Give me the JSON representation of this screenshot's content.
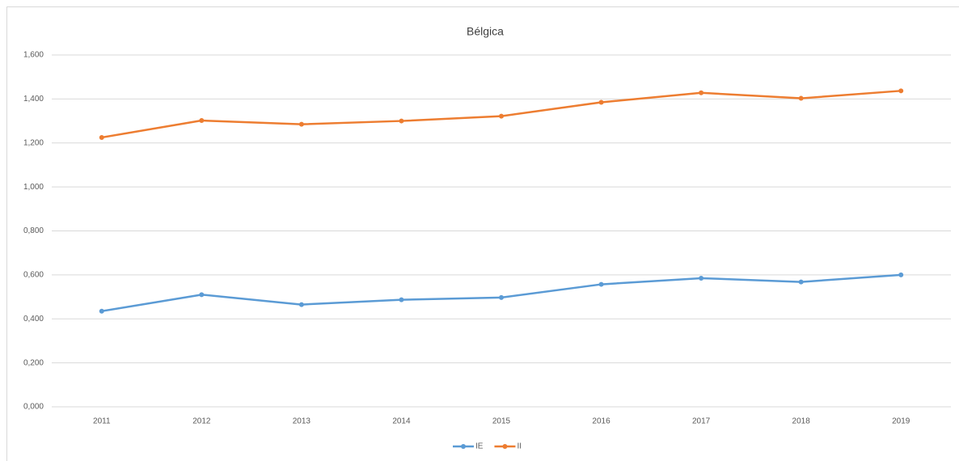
{
  "chart_data": {
    "type": "line",
    "title": "Bélgica",
    "categories": [
      "2011",
      "2012",
      "2013",
      "2014",
      "2015",
      "2016",
      "2017",
      "2018",
      "2019"
    ],
    "series": [
      {
        "name": "IE",
        "color": "#5b9bd5",
        "values": [
          0.435,
          0.51,
          0.465,
          0.487,
          0.497,
          0.557,
          0.585,
          0.568,
          0.6
        ]
      },
      {
        "name": "II",
        "color": "#ed7d31",
        "values": [
          1.225,
          1.302,
          1.285,
          1.3,
          1.322,
          1.385,
          1.428,
          1.403,
          1.437
        ]
      }
    ],
    "ylim": [
      0,
      1.6
    ],
    "yticks": [
      {
        "value": 0,
        "label": "0,000"
      },
      {
        "value": 0.2,
        "label": "0,200"
      },
      {
        "value": 0.4,
        "label": "0,400"
      },
      {
        "value": 0.6,
        "label": "0,600"
      },
      {
        "value": 0.8,
        "label": "0,800"
      },
      {
        "value": 1,
        "label": "1,000"
      },
      {
        "value": 1.2,
        "label": "1,200"
      },
      {
        "value": 1.4,
        "label": "1,400"
      },
      {
        "value": 1.6,
        "label": "1,600"
      }
    ],
    "grid": true,
    "legend": "bottom"
  }
}
